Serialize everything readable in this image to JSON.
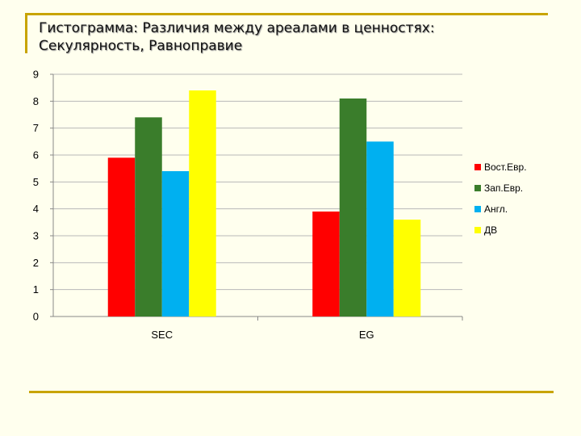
{
  "slide": {
    "title_line1": "Гистограмма: Различия между ареалами в ценностях:",
    "title_line2": "Секулярность,  Равноправие"
  },
  "chart_data": {
    "type": "bar",
    "categories": [
      "SEC",
      "EG"
    ],
    "series": [
      {
        "name": "Вост.Евр.",
        "color": "#ff0000",
        "values": [
          5.9,
          3.9
        ]
      },
      {
        "name": "Зап.Евр.",
        "color": "#3a7d2b",
        "values": [
          7.4,
          8.1
        ]
      },
      {
        "name": "Англ.",
        "color": "#00b0f0",
        "values": [
          5.4,
          6.5
        ]
      },
      {
        "name": "ДВ",
        "color": "#ffff00",
        "values": [
          8.4,
          3.6
        ]
      }
    ],
    "ylim": [
      0,
      9
    ],
    "yticks": [
      "0",
      "1",
      "2",
      "3",
      "4",
      "5",
      "6",
      "7",
      "8",
      "9"
    ],
    "grid": true,
    "legend_position": "right",
    "title": "",
    "xlabel": "",
    "ylabel": ""
  }
}
